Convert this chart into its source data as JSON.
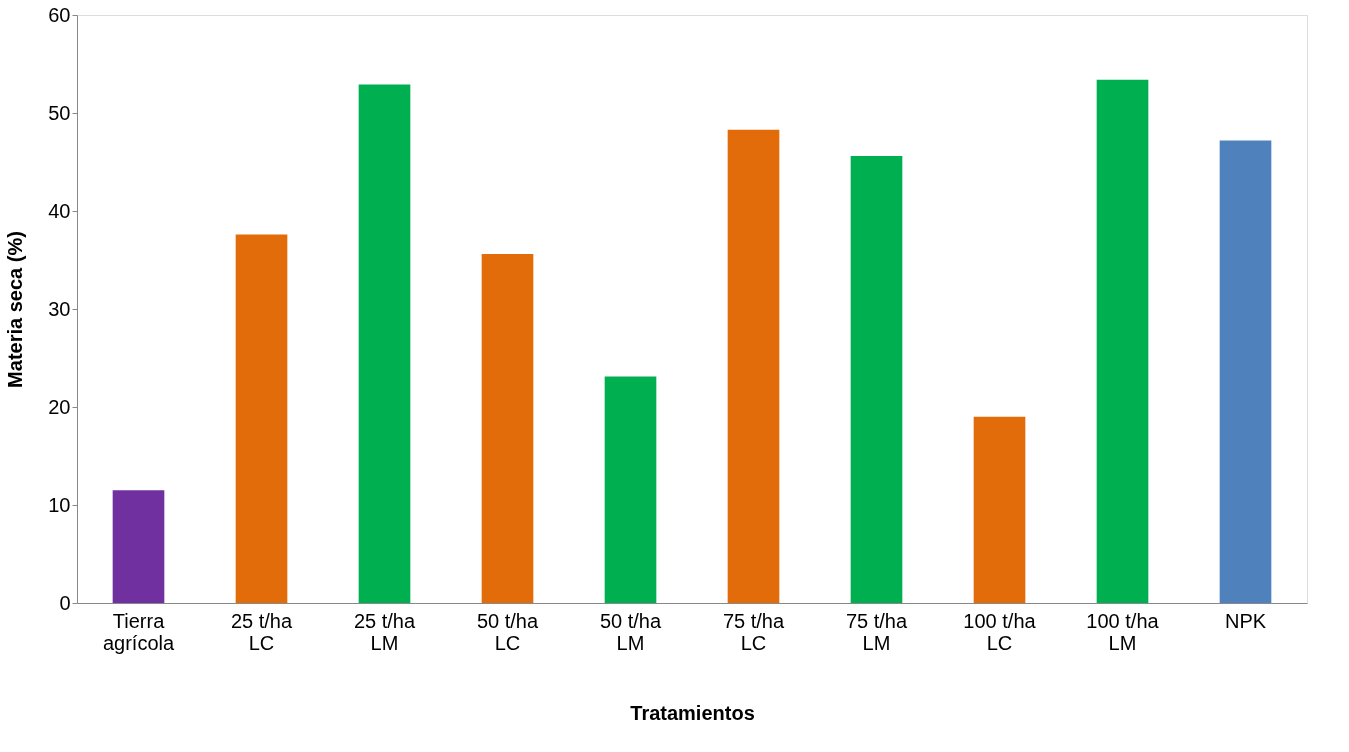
{
  "chart_data": {
    "type": "bar",
    "xlabel": "Tratamientos",
    "ylabel": "Materia seca (%)",
    "categories": [
      "Tierra\nagrícola",
      "25 t/ha\nLC",
      "25 t/ha\nLM",
      "50 t/ha\nLC",
      "50 t/ha\nLM",
      "75 t/ha\nLC",
      "75 t/ha\nLM",
      "100 t/ha\nLC",
      "100 t/ha\nLM",
      "NPK"
    ],
    "values": [
      11.5,
      37.6,
      52.9,
      35.6,
      23.1,
      48.3,
      45.6,
      19.0,
      53.4,
      47.2
    ],
    "colors": [
      "#7030a0",
      "#e36c0a",
      "#00b050",
      "#e36c0a",
      "#00b050",
      "#e36c0a",
      "#00b050",
      "#e36c0a",
      "#00b050",
      "#4f81bd"
    ],
    "ylim": [
      0,
      60
    ],
    "yticks": [
      0,
      10,
      20,
      30,
      40,
      50,
      60
    ],
    "grid": false,
    "legend": false
  }
}
